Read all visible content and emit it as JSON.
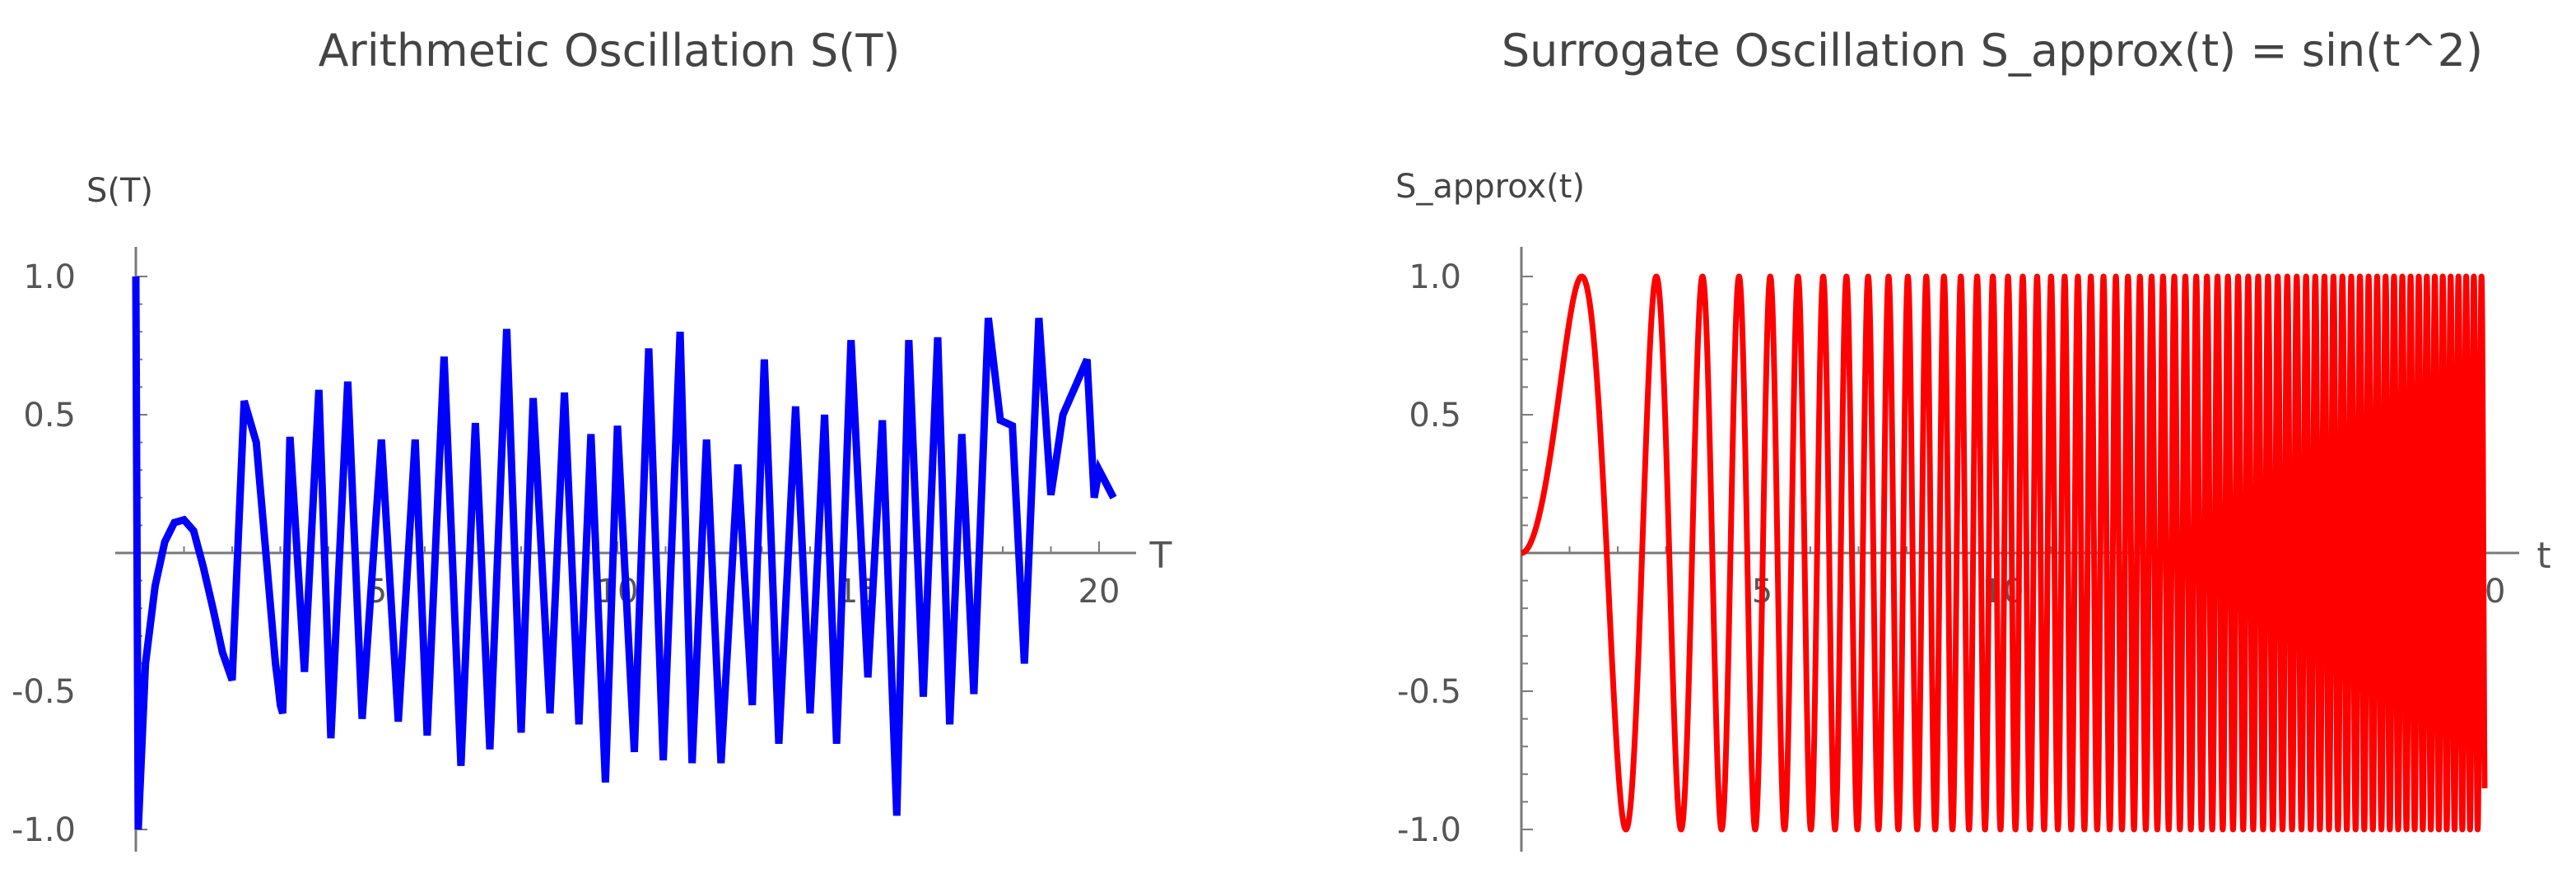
{
  "chart_data": [
    {
      "type": "line",
      "title": "Arithmetic Oscillation S(T)",
      "ylabel": "S(T)",
      "xlabel": "T",
      "xlim": [
        0,
        21
      ],
      "ylim": [
        -1.05,
        1.05
      ],
      "x_ticks": [
        "5",
        "10",
        "15",
        "20"
      ],
      "y_ticks": [
        "1.0",
        "0.5",
        "-0.5",
        "-1.0"
      ],
      "grid": false,
      "series_color": "#0000ff",
      "series": [
        {
          "x": [
            0.0,
            0.05,
            0.2,
            0.4,
            0.6,
            0.8,
            1.0,
            1.2,
            1.4,
            1.6,
            1.8,
            2.0,
            2.25,
            2.5,
            2.9,
            2.95,
            3.0,
            3.05,
            3.2,
            3.5,
            3.8,
            4.05,
            4.4,
            4.7,
            5.1,
            5.45,
            5.8,
            6.05,
            6.4,
            6.75,
            7.05,
            7.35,
            7.7,
            8.0,
            8.25,
            8.6,
            8.9,
            9.2,
            9.45,
            9.75,
            10.0,
            10.35,
            10.65,
            10.95,
            11.3,
            11.55,
            11.85,
            12.15,
            12.5,
            12.8,
            13.05,
            13.35,
            13.7,
            14.0,
            14.3,
            14.55,
            14.85,
            15.2,
            15.5,
            15.8,
            16.05,
            16.35,
            16.65,
            16.9,
            17.15,
            17.4,
            17.7,
            17.95,
            18.2,
            18.45,
            18.75,
            19.0,
            19.25,
            19.5,
            19.75,
            19.9,
            20.0,
            20.15,
            20.3
          ],
          "y": [
            1.0,
            -1.0,
            -0.4,
            -0.12,
            0.04,
            0.11,
            0.12,
            0.08,
            -0.05,
            -0.2,
            -0.36,
            -0.46,
            0.55,
            0.4,
            -0.4,
            -0.47,
            -0.55,
            -0.58,
            0.42,
            -0.43,
            0.59,
            -0.67,
            0.62,
            -0.6,
            0.41,
            -0.61,
            0.41,
            -0.66,
            0.71,
            -0.77,
            0.47,
            -0.71,
            0.81,
            -0.65,
            0.56,
            -0.58,
            0.58,
            -0.62,
            0.43,
            -0.83,
            0.46,
            -0.72,
            0.74,
            -0.75,
            0.8,
            -0.76,
            0.41,
            -0.76,
            0.32,
            -0.55,
            0.7,
            -0.69,
            0.53,
            -0.58,
            0.5,
            -0.69,
            0.77,
            -0.45,
            0.48,
            -0.95,
            0.77,
            -0.52,
            0.78,
            -0.62,
            0.43,
            -0.51,
            0.85,
            0.48,
            0.46,
            -0.4,
            0.85,
            0.21,
            0.5,
            0.6,
            0.7,
            0.2,
            0.3,
            0.25,
            0.2
          ]
        }
      ]
    },
    {
      "type": "line",
      "title": "Surrogate Oscillation S_approx(t) = sin(t^2)",
      "ylabel": "S_approx(t)",
      "xlabel": "t",
      "xlim": [
        0,
        21
      ],
      "ylim": [
        -1.05,
        1.05
      ],
      "x_ticks": [
        "5",
        "10",
        "15",
        "20"
      ],
      "y_ticks": [
        "1.0",
        "0.5",
        "-0.5",
        "-1.0"
      ],
      "grid": false,
      "series_color": "#ff0000",
      "series": [
        {
          "function": "sin(t^2)",
          "x_range": [
            0,
            20
          ]
        }
      ]
    }
  ]
}
